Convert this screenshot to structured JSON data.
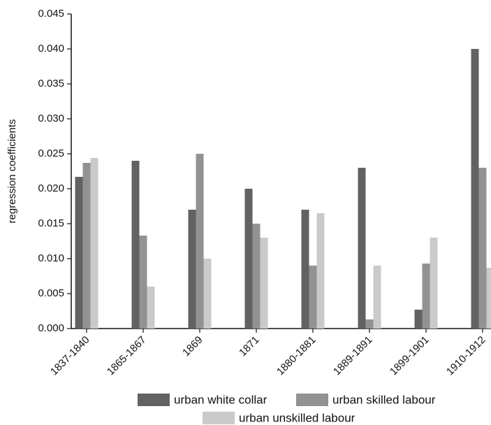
{
  "chart_data": {
    "type": "bar",
    "y_label": "regression coefficients",
    "categories": [
      "1837-1840",
      "1865-1867",
      "1869",
      "1871",
      "1880-1881",
      "1889-1891",
      "1899-1901",
      "1910-1912"
    ],
    "series": [
      {
        "name": "urban white collar",
        "color": "#626262",
        "values": [
          0.0217,
          0.024,
          0.017,
          0.02,
          0.017,
          0.023,
          0.0027,
          0.04
        ]
      },
      {
        "name": "urban skilled labour",
        "color": "#929292",
        "values": [
          0.0237,
          0.0133,
          0.025,
          0.015,
          0.009,
          0.0013,
          0.0093,
          0.023
        ]
      },
      {
        "name": "urban unskilled labour",
        "color": "#cacaca",
        "values": [
          0.0244,
          0.006,
          0.01,
          0.013,
          0.0165,
          0.009,
          0.013,
          0.0087
        ]
      }
    ],
    "ylim": [
      0,
      0.045
    ],
    "yticks": [
      {
        "value": 0,
        "label": "0.000"
      },
      {
        "value": 0.005,
        "label": "0.005"
      },
      {
        "value": 0.01,
        "label": "0.010"
      },
      {
        "value": 0.015,
        "label": "0.015"
      },
      {
        "value": 0.02,
        "label": "0.020"
      },
      {
        "value": 0.025,
        "label": "0.025"
      },
      {
        "value": 0.03,
        "label": "0.030"
      },
      {
        "value": 0.035,
        "label": "0.035"
      },
      {
        "value": 0.04,
        "label": "0.040"
      },
      {
        "value": 0.045,
        "label": "0.045"
      }
    ],
    "legend": "bottom"
  }
}
